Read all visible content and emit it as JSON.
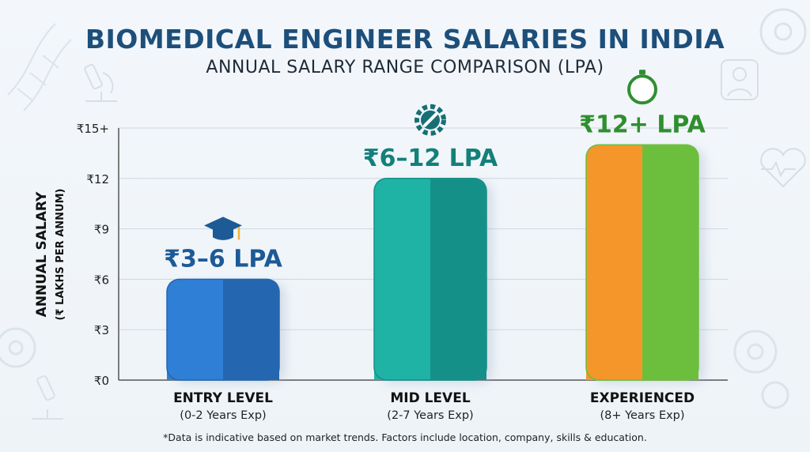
{
  "title": "BIOMEDICAL ENGINEER SALARIES IN INDIA",
  "subtitle": "ANNUAL SALARY RANGE COMPARISON (LPA)",
  "footnote": "*Data is indicative based on market trends. Factors include location, company, skills & education.",
  "chart_data": {
    "type": "bar",
    "ylabel_line1": "ANNUAL SALARY",
    "ylabel_line2": "(₹ LAKHS PER ANNUM)",
    "ylim": [
      0,
      15
    ],
    "yticks": [
      {
        "value": 0,
        "label": "₹0"
      },
      {
        "value": 3,
        "label": "₹3"
      },
      {
        "value": 6,
        "label": "₹6"
      },
      {
        "value": 9,
        "label": "₹9"
      },
      {
        "value": 12,
        "label": "₹12"
      },
      {
        "value": 15,
        "label": "₹15+"
      }
    ],
    "grid": true,
    "categories": [
      {
        "name": "ENTRY LEVEL",
        "sub": "(0-2 Years Exp)",
        "value": 6,
        "label": "₹3–6 LPA",
        "label_color": "#1d5a96",
        "color_left": "#2f7fd6",
        "color_right": "#2566b0",
        "icon": "graduation-cap-icon"
      },
      {
        "name": "MID LEVEL",
        "sub": "(2-7 Years Exp)",
        "value": 12,
        "label": "₹6–12 LPA",
        "label_color": "#13807a",
        "color_left": "#1fb3a6",
        "color_right": "#159088",
        "icon": "gear-wrench-icon"
      },
      {
        "name": "EXPERIENCED",
        "sub": "(8+ Years Exp)",
        "value": 14,
        "label": "₹12+ LPA",
        "label_color": "#2f8f2f",
        "color_left": "#f4962a",
        "color_right": "#6cbf3c",
        "icon": "compass-icon"
      }
    ]
  }
}
